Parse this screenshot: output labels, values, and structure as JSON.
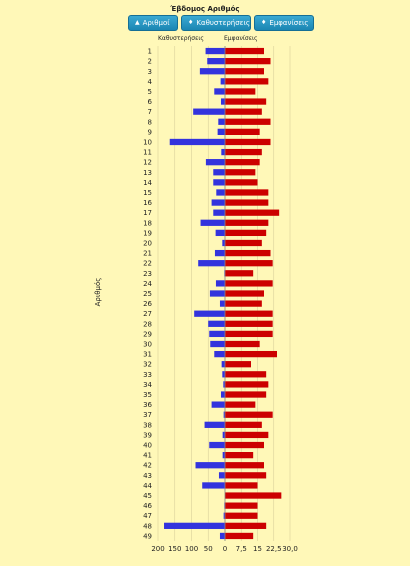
{
  "page": {
    "title": "Έβδομος Αριθμός",
    "buttons": [
      {
        "label": "Αριθμοί",
        "icon": "sort-up-icon"
      },
      {
        "label": "Καθυστερήσεις",
        "icon": "sort-icon"
      },
      {
        "label": "Εμφανίσεις",
        "icon": "sort-icon"
      }
    ],
    "colors": {
      "left_series": "#3333dd",
      "right_series": "#cc0000",
      "background": "#fff8b8"
    }
  },
  "chart_data": {
    "type": "bar",
    "title": "Έβδομος Αριθμός",
    "ylabel": "Αριθμός",
    "categories": [
      "1",
      "2",
      "3",
      "4",
      "5",
      "6",
      "7",
      "8",
      "9",
      "10",
      "11",
      "12",
      "13",
      "14",
      "15",
      "16",
      "17",
      "18",
      "19",
      "20",
      "21",
      "22",
      "23",
      "24",
      "25",
      "26",
      "27",
      "28",
      "29",
      "30",
      "31",
      "32",
      "33",
      "34",
      "35",
      "36",
      "37",
      "38",
      "39",
      "40",
      "41",
      "42",
      "43",
      "44",
      "45",
      "46",
      "47",
      "48",
      "49"
    ],
    "series": [
      {
        "name": "Καθυστερήσεις",
        "direction": "left",
        "values": [
          58,
          53,
          75,
          13,
          32,
          12,
          95,
          20,
          22,
          165,
          11,
          57,
          35,
          35,
          26,
          40,
          35,
          73,
          28,
          8,
          30,
          80,
          2,
          27,
          45,
          15,
          92,
          50,
          47,
          44,
          32,
          10,
          8,
          5,
          12,
          40,
          4,
          61,
          7,
          47,
          7,
          88,
          18,
          68,
          0,
          2,
          4,
          182,
          15
        ]
      },
      {
        "name": "Εμφανίσεις",
        "direction": "right",
        "values": [
          18,
          21,
          18,
          20,
          14,
          19,
          17,
          21,
          16,
          21,
          17,
          16,
          14,
          15,
          20,
          20,
          25,
          20,
          19,
          17,
          21,
          22,
          13,
          22,
          18,
          17,
          22,
          22,
          22,
          16,
          24,
          12,
          19,
          20,
          19,
          14,
          22,
          17,
          20,
          18,
          13,
          18,
          19,
          15,
          26,
          15,
          15,
          19,
          13
        ]
      }
    ],
    "axis": {
      "left_ticks": [
        "200",
        "150",
        "100",
        "50",
        "0"
      ],
      "right_ticks": [
        "0",
        "7,5",
        "15",
        "22,5",
        "30,0"
      ],
      "left_range": [
        0,
        200
      ],
      "right_range": [
        0,
        30
      ]
    },
    "grid": true,
    "legend": "column headers above bars"
  }
}
